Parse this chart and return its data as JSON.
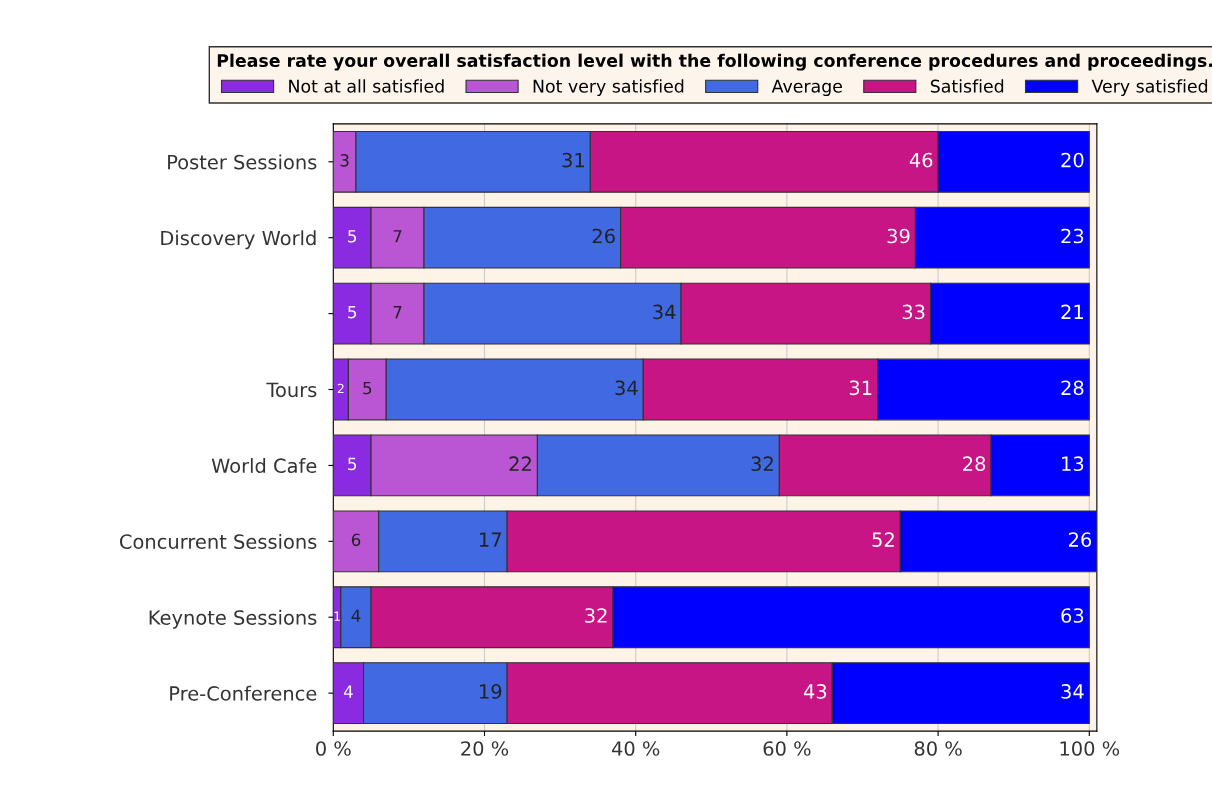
{
  "chart_data": {
    "type": "bar",
    "orientation": "horizontal",
    "stacked": true,
    "legend_title": "Please rate your overall satisfaction level with the following conference procedures and proceedings.",
    "categories": [
      "Poster Sessions",
      "Discovery World",
      null,
      "Tours",
      "World Cafe",
      "Concurrent Sessions",
      "Keynote Sessions",
      "Pre-Conference"
    ],
    "series": [
      {
        "name": "Not at all satisfied",
        "color": "#8a2be2",
        "values": [
          0,
          5,
          5,
          2,
          5,
          0,
          1,
          4
        ],
        "value_labels": [
          null,
          "5",
          "5",
          "2",
          "5",
          null,
          "1",
          "4"
        ]
      },
      {
        "name": "Not very satisfied",
        "color": "#ba55d3",
        "values": [
          3,
          7,
          7,
          5,
          22,
          6,
          0,
          0
        ],
        "value_labels": [
          "3",
          "7",
          "7",
          "5",
          "22",
          "6",
          null,
          null
        ]
      },
      {
        "name": "Average",
        "color": "#4169e1",
        "values": [
          31,
          26,
          34,
          34,
          32,
          17,
          4,
          19
        ],
        "value_labels": [
          "31",
          "26",
          "34",
          "34",
          "32",
          "17",
          "4",
          "19"
        ]
      },
      {
        "name": "Satisfied",
        "color": "#c71585",
        "values": [
          46,
          39,
          33,
          31,
          28,
          52,
          32,
          43
        ],
        "value_labels": [
          "46",
          "39",
          "33",
          "31",
          "28",
          "52",
          "32",
          "43"
        ]
      },
      {
        "name": "Very satisfied",
        "color": "#0000ff",
        "values": [
          20,
          23,
          21,
          28,
          13,
          26,
          63,
          34
        ],
        "value_labels": [
          "20",
          "23",
          "21",
          "28",
          "13",
          "26",
          "63",
          "34"
        ]
      }
    ],
    "xlim": [
      0,
      101
    ],
    "xticks": [
      {
        "value": 0,
        "label": "0 %"
      },
      {
        "value": 20,
        "label": "20 %"
      },
      {
        "value": 40,
        "label": "40 %"
      },
      {
        "value": 60,
        "label": "60 %"
      },
      {
        "value": 80,
        "label": "80 %"
      },
      {
        "value": 100,
        "label": "100 %"
      }
    ],
    "grid": "x",
    "legend": "top"
  }
}
